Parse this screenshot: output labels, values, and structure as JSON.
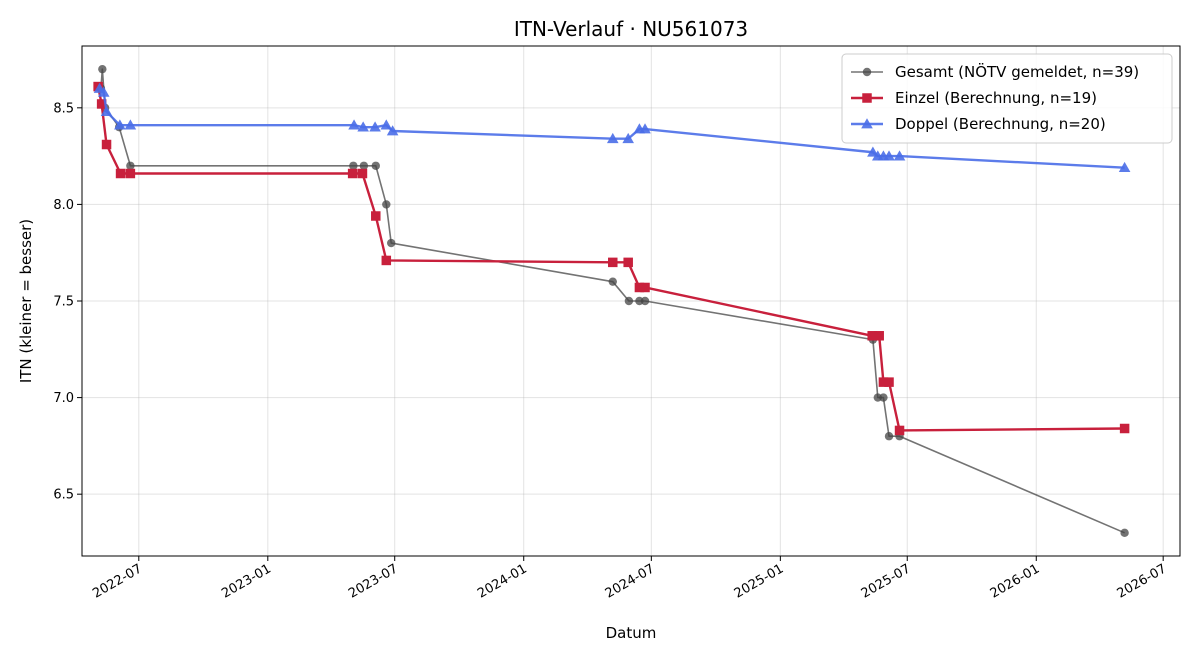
{
  "chart_data": {
    "type": "line",
    "title": "ITN-Verlauf · NU561073",
    "xlabel": "Datum",
    "ylabel": "ITN  (kleiner = besser)",
    "grid": true,
    "legend_position": "top-right",
    "xlim": [
      "2022-04-11",
      "2026-07-25"
    ],
    "ylim": [
      6.18,
      8.82
    ],
    "x_ticks": [
      "2022-07-01",
      "2023-01-01",
      "2023-07-01",
      "2024-01-01",
      "2024-07-01",
      "2025-01-01",
      "2025-07-01",
      "2026-01-01",
      "2026-07-01"
    ],
    "x_tick_labels": [
      "2022-07",
      "2023-01",
      "2023-07",
      "2024-01",
      "2024-07",
      "2025-01",
      "2025-07",
      "2026-01",
      "2026-07"
    ],
    "y_ticks": [
      6.5,
      7.0,
      7.5,
      8.0,
      8.5
    ],
    "y_tick_labels": [
      "6.5",
      "7.0",
      "7.5",
      "8.0",
      "8.5"
    ],
    "series": [
      {
        "name": "Gesamt (NÖTV gemeldet, n=39)",
        "color": "#444444",
        "marker": "circle",
        "linewidth": 1.6,
        "opacity": 0.75,
        "points": [
          {
            "x": "2022-05-08",
            "y": 8.6
          },
          {
            "x": "2022-05-10",
            "y": 8.7
          },
          {
            "x": "2022-05-14",
            "y": 8.5
          },
          {
            "x": "2022-06-03",
            "y": 8.4
          },
          {
            "x": "2022-06-19",
            "y": 8.2
          },
          {
            "x": "2023-05-03",
            "y": 8.2
          },
          {
            "x": "2023-05-18",
            "y": 8.2
          },
          {
            "x": "2023-06-04",
            "y": 8.2
          },
          {
            "x": "2023-06-19",
            "y": 8.0
          },
          {
            "x": "2023-06-26",
            "y": 7.8
          },
          {
            "x": "2024-05-07",
            "y": 7.6
          },
          {
            "x": "2024-05-30",
            "y": 7.5
          },
          {
            "x": "2024-06-14",
            "y": 7.5
          },
          {
            "x": "2024-06-22",
            "y": 7.5
          },
          {
            "x": "2025-05-13",
            "y": 7.3
          },
          {
            "x": "2025-05-20",
            "y": 7.0
          },
          {
            "x": "2025-05-28",
            "y": 7.0
          },
          {
            "x": "2025-06-05",
            "y": 6.8
          },
          {
            "x": "2025-06-20",
            "y": 6.8
          },
          {
            "x": "2026-05-07",
            "y": 6.3
          }
        ]
      },
      {
        "name": "Einzel (Berechnung, n=19)",
        "color": "#c8203c",
        "marker": "square",
        "linewidth": 2.4,
        "opacity": 1,
        "points": [
          {
            "x": "2022-05-04",
            "y": 8.61
          },
          {
            "x": "2022-05-09",
            "y": 8.52
          },
          {
            "x": "2022-05-16",
            "y": 8.31
          },
          {
            "x": "2022-06-05",
            "y": 8.16
          },
          {
            "x": "2022-06-19",
            "y": 8.16
          },
          {
            "x": "2023-05-02",
            "y": 8.16
          },
          {
            "x": "2023-05-16",
            "y": 8.16
          },
          {
            "x": "2023-06-04",
            "y": 7.94
          },
          {
            "x": "2023-06-19",
            "y": 7.71
          },
          {
            "x": "2024-05-07",
            "y": 7.7
          },
          {
            "x": "2024-05-29",
            "y": 7.7
          },
          {
            "x": "2024-06-14",
            "y": 7.57
          },
          {
            "x": "2024-06-22",
            "y": 7.57
          },
          {
            "x": "2025-05-12",
            "y": 7.32
          },
          {
            "x": "2025-05-22",
            "y": 7.32
          },
          {
            "x": "2025-05-28",
            "y": 7.08
          },
          {
            "x": "2025-06-05",
            "y": 7.08
          },
          {
            "x": "2025-06-20",
            "y": 6.83
          },
          {
            "x": "2026-05-07",
            "y": 6.84
          }
        ]
      },
      {
        "name": "Doppel (Berechnung, n=20)",
        "color": "#4a6ee8",
        "marker": "triangle",
        "linewidth": 2.4,
        "opacity": 0.9,
        "points": [
          {
            "x": "2022-05-06",
            "y": 8.6
          },
          {
            "x": "2022-05-12",
            "y": 8.58
          },
          {
            "x": "2022-05-16",
            "y": 8.48
          },
          {
            "x": "2022-06-04",
            "y": 8.41
          },
          {
            "x": "2022-06-19",
            "y": 8.41
          },
          {
            "x": "2023-05-04",
            "y": 8.41
          },
          {
            "x": "2023-05-17",
            "y": 8.4
          },
          {
            "x": "2023-06-03",
            "y": 8.4
          },
          {
            "x": "2023-06-19",
            "y": 8.41
          },
          {
            "x": "2023-06-28",
            "y": 8.38
          },
          {
            "x": "2024-05-07",
            "y": 8.34
          },
          {
            "x": "2024-05-29",
            "y": 8.34
          },
          {
            "x": "2024-06-14",
            "y": 8.39
          },
          {
            "x": "2024-06-22",
            "y": 8.39
          },
          {
            "x": "2025-05-13",
            "y": 8.27
          },
          {
            "x": "2025-05-20",
            "y": 8.25
          },
          {
            "x": "2025-05-28",
            "y": 8.25
          },
          {
            "x": "2025-06-05",
            "y": 8.25
          },
          {
            "x": "2025-06-20",
            "y": 8.25
          },
          {
            "x": "2026-05-07",
            "y": 8.19
          }
        ]
      }
    ]
  }
}
